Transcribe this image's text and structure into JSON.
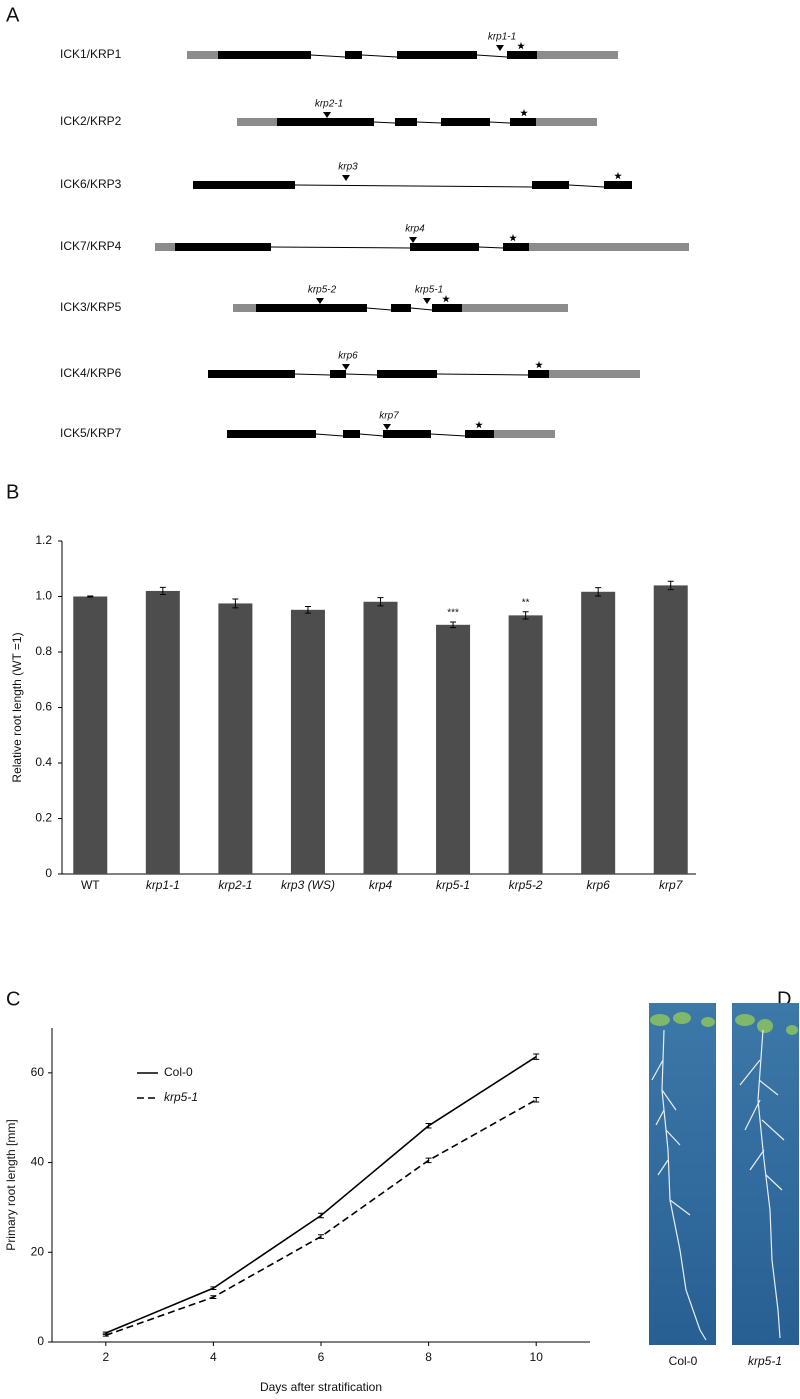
{
  "panel_labels": [
    "A",
    "B",
    "C",
    "D"
  ],
  "gene_diagram": {
    "genes": [
      {
        "name": "ICK1/KRP1",
        "alleles": [
          "krp1-1"
        ]
      },
      {
        "name": "ICK2/KRP2",
        "alleles": [
          "krp2-1"
        ]
      },
      {
        "name": "ICK6/KRP3",
        "alleles": [
          "krp3"
        ]
      },
      {
        "name": "ICK7/KRP4",
        "alleles": [
          "krp4"
        ]
      },
      {
        "name": "ICK3/KRP5",
        "alleles": [
          "krp5-2",
          "krp5-1"
        ]
      },
      {
        "name": "ICK4/KRP6",
        "alleles": [
          "krp6"
        ]
      },
      {
        "name": "ICK5/KRP7",
        "alleles": [
          "krp7"
        ]
      }
    ]
  },
  "chart_data": [
    {
      "type": "bar",
      "y_label": "Relative root length (WT =1)",
      "categories": [
        "WT",
        "krp1-1",
        "krp2-1",
        "krp3 (WS)",
        "krp4",
        "krp5-1",
        "krp5-2",
        "krp6",
        "krp7"
      ],
      "values": [
        1.0,
        1.02,
        0.975,
        0.952,
        0.981,
        0.898,
        0.932,
        1.017,
        1.04
      ],
      "errors": [
        0.002,
        0.013,
        0.016,
        0.012,
        0.015,
        0.01,
        0.013,
        0.015,
        0.015
      ],
      "significance": [
        null,
        null,
        null,
        null,
        null,
        "***",
        "**",
        null,
        null
      ],
      "color": "#4d4d4d",
      "ylim": [
        0,
        1.2
      ],
      "yticks": [
        0,
        0.2,
        0.4,
        0.6,
        0.8,
        {
          "value": 1,
          "label": "1.0"
        },
        1.2
      ]
    },
    {
      "type": "line",
      "x_label": "Days after stratification",
      "y_label": "Primary root length [mm]",
      "x": [
        2,
        4,
        6,
        8,
        10
      ],
      "series": [
        {
          "name": "Col-0",
          "color": "#000000",
          "dash": "solid",
          "values": [
            2,
            12,
            28.2,
            48.2,
            63.6
          ],
          "errors": [
            0.2,
            0.3,
            0.5,
            0.5,
            0.6
          ]
        },
        {
          "name": "krp5-1",
          "color": "#000000",
          "dash": "dashed",
          "values": [
            1.5,
            10,
            23.5,
            40.5,
            54
          ],
          "errors": [
            0.2,
            0.3,
            0.4,
            0.5,
            0.5
          ]
        }
      ],
      "xlim": [
        1,
        11
      ],
      "ylim": [
        0,
        70
      ],
      "xticks": [
        2,
        4,
        6,
        8,
        10
      ],
      "yticks": [
        0,
        20,
        40,
        60
      ],
      "legend": "upper-left"
    }
  ],
  "photos": {
    "labels": [
      "Col-0",
      "krp5-1"
    ]
  }
}
